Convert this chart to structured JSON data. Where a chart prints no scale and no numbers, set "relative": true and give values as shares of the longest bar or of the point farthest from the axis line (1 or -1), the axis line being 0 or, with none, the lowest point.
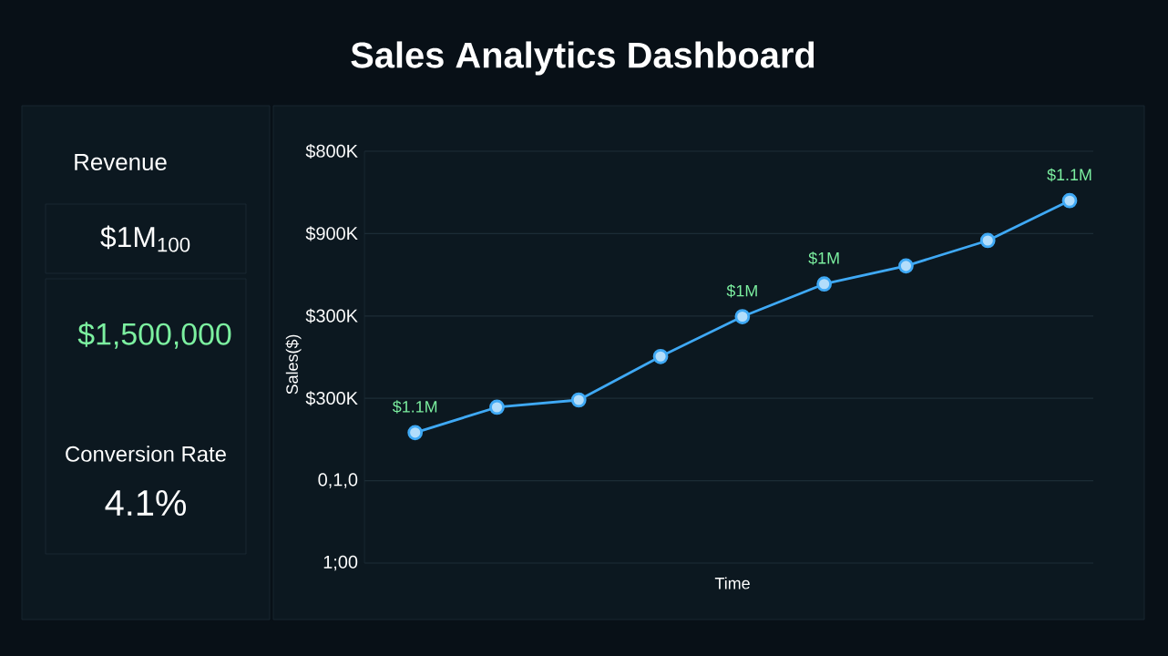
{
  "chart_data": [
    {
      "type": "other",
      "title": "Revenue",
      "annotations": [
        "$1M$_{100}$",
        "$1,500,000",
        "Conversion Rate",
        "4.1%"
      ]
    },
    {
      "type": "line",
      "title": "Sales Analytics Dashboard",
      "xlabel": "Time",
      "ylabel": "Sales($)",
      "categories": [
        null,
        null,
        null,
        null,
        null,
        null,
        null,
        null,
        null
      ],
      "relative": true,
      "series": [
        {
          "color": "#3fa9f5",
          "values": [
            0.36,
            0.43,
            0.45,
            0.57,
            0.68,
            0.77,
            0.82,
            0.89,
            1
          ]
        }
      ],
      "annotations": [
        "$800K",
        "$900K",
        "$300K",
        "$300K",
        "0,1,0",
        "1;00",
        {
          "text": "$1.1M",
          "y": 0.36
        },
        {
          "text": "$1M",
          "y": 0.68
        },
        {
          "text": "$1M",
          "y": 0.77
        },
        {
          "text": "$1.1M",
          "y": 1
        }
      ],
      "grid": "y",
      "marker": "circle",
      "line_style": "solid"
    }
  ]
}
